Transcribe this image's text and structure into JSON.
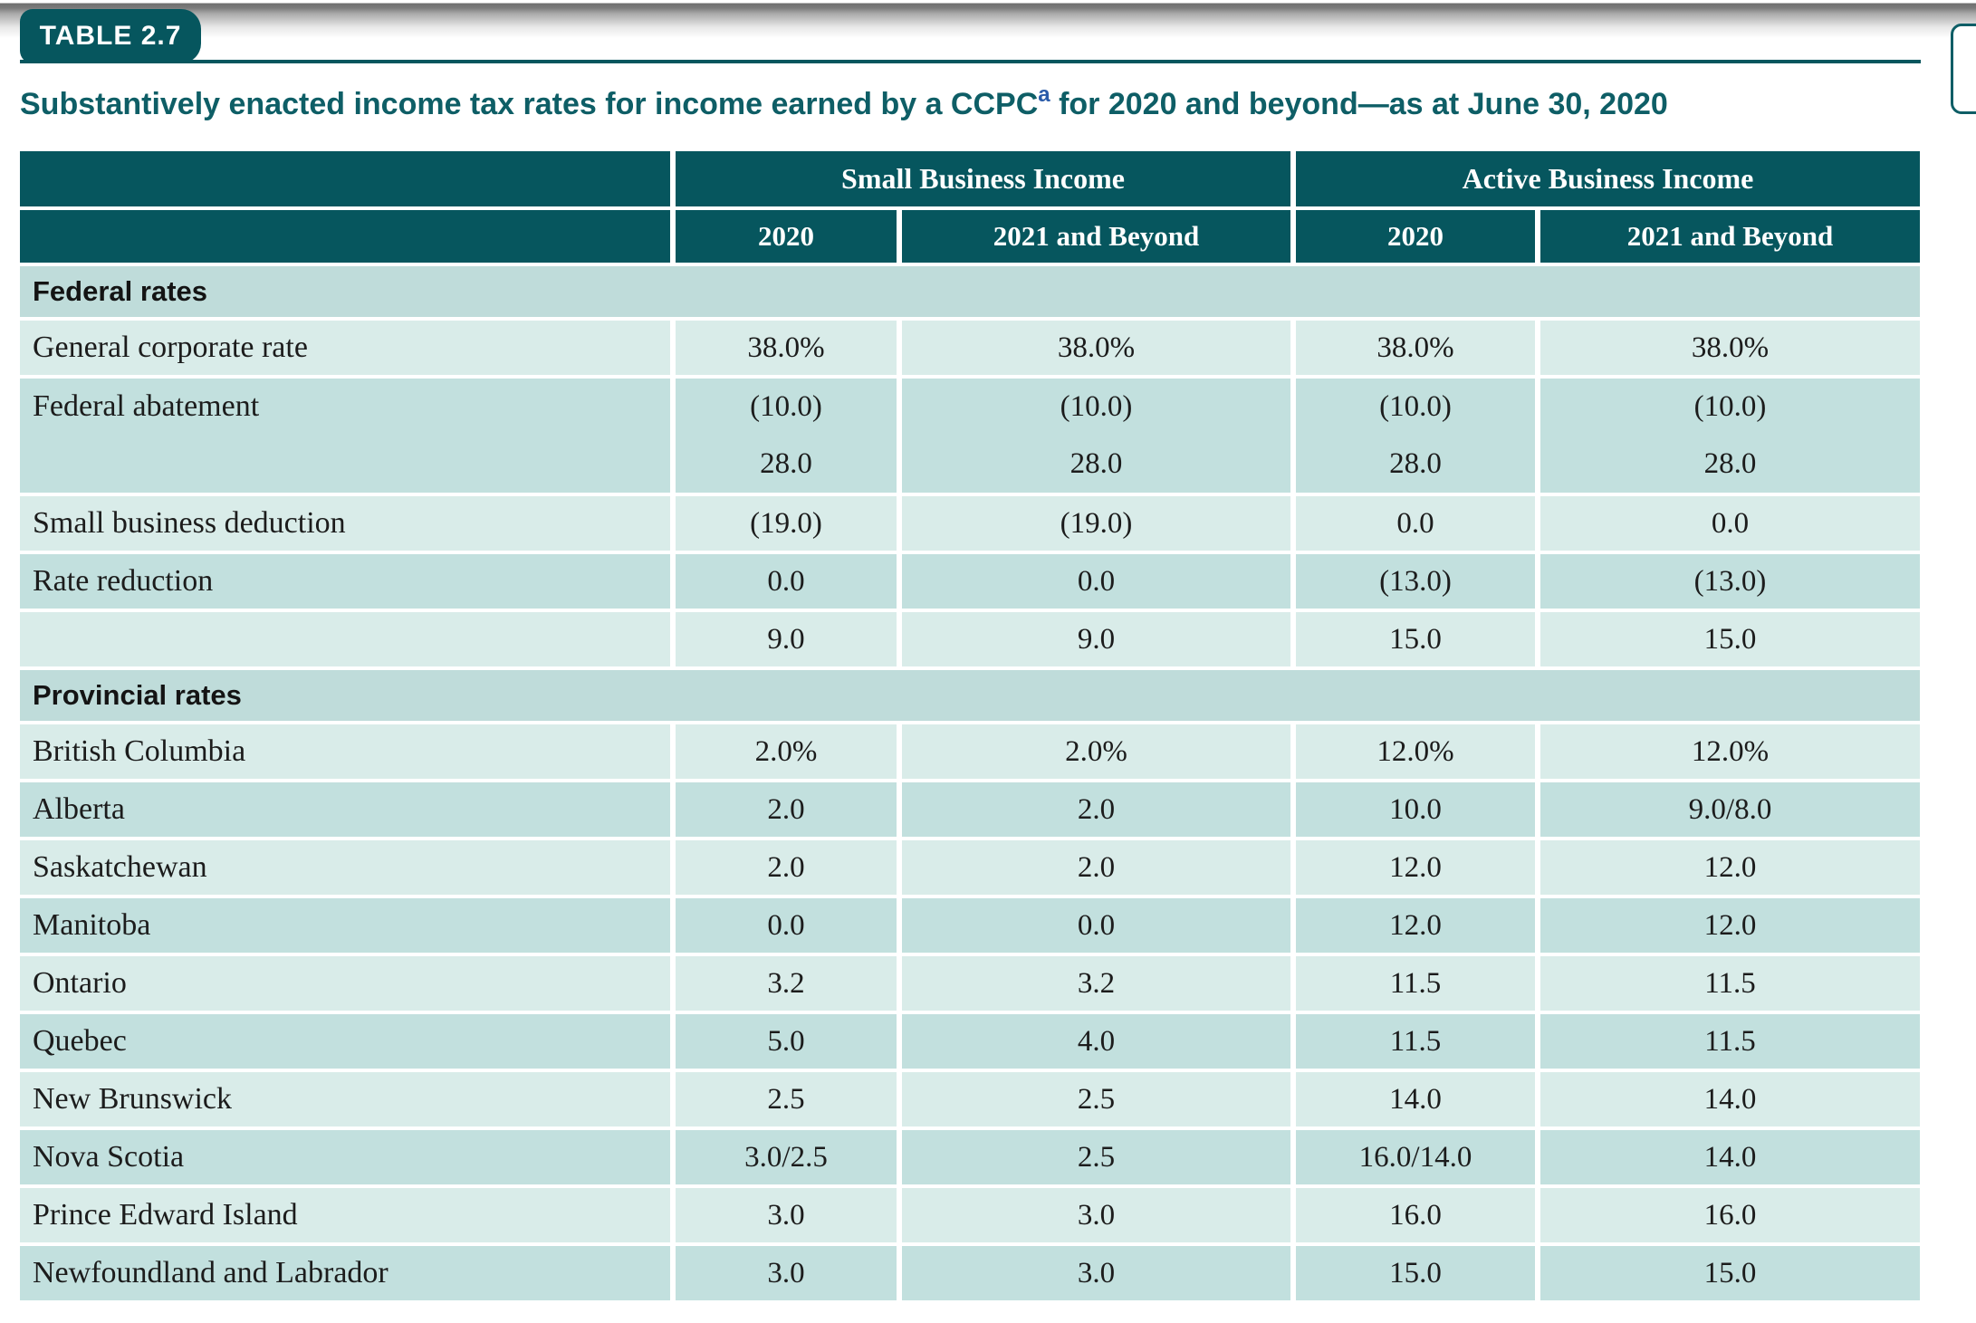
{
  "badge": "TABLE 2.7",
  "title": {
    "part1": "Substantively enacted income tax rates for income earned by a CCPC",
    "footnote_marker": "a",
    "part2": " for 2020 and beyond—as at June 30, 2020"
  },
  "colors": {
    "header_teal": "#06565e",
    "title_teal": "#0e5e66",
    "footnote_blue": "#2a5ba9",
    "section_bg": "#bfdcda",
    "row_light_bg": "#d9ece9",
    "row_dark_bg": "#c2e0de",
    "body_text": "#1c1c1c"
  },
  "table": {
    "group_headers": [
      "Small Business Income",
      "Active Business Income"
    ],
    "col_headers": [
      "2020",
      "2021 and Beyond",
      "2020",
      "2021 and Beyond"
    ],
    "rows": [
      {
        "type": "section",
        "label": "Federal rates"
      },
      {
        "type": "data",
        "shade": "light",
        "label": "General corporate rate",
        "values": [
          "38.0%",
          "38.0%",
          "38.0%",
          "38.0%"
        ]
      },
      {
        "type": "data2",
        "shade": "dark",
        "label": "Federal abatement",
        "top": [
          "(10.0)",
          "(10.0)",
          "(10.0)",
          "(10.0)"
        ],
        "bottom": [
          "28.0",
          "28.0",
          "28.0",
          "28.0"
        ]
      },
      {
        "type": "data",
        "shade": "light",
        "label": "Small business deduction",
        "values": [
          "(19.0)",
          "(19.0)",
          "0.0",
          "0.0"
        ]
      },
      {
        "type": "data",
        "shade": "dark",
        "label": "Rate reduction",
        "values": [
          "0.0",
          "0.0",
          "(13.0)",
          "(13.0)"
        ]
      },
      {
        "type": "data",
        "shade": "light",
        "label": "",
        "values": [
          "9.0",
          "9.0",
          "15.0",
          "15.0"
        ]
      },
      {
        "type": "section",
        "label": "Provincial rates"
      },
      {
        "type": "data",
        "shade": "light",
        "label": "British Columbia",
        "values": [
          "2.0%",
          "2.0%",
          "12.0%",
          "12.0%"
        ]
      },
      {
        "type": "data",
        "shade": "dark",
        "label": "Alberta",
        "values": [
          "2.0",
          "2.0",
          "10.0",
          "9.0/8.0"
        ]
      },
      {
        "type": "data",
        "shade": "light",
        "label": "Saskatchewan",
        "values": [
          "2.0",
          "2.0",
          "12.0",
          "12.0"
        ]
      },
      {
        "type": "data",
        "shade": "dark",
        "label": "Manitoba",
        "values": [
          "0.0",
          "0.0",
          "12.0",
          "12.0"
        ]
      },
      {
        "type": "data",
        "shade": "light",
        "label": "Ontario",
        "values": [
          "3.2",
          "3.2",
          "11.5",
          "11.5"
        ]
      },
      {
        "type": "data",
        "shade": "dark",
        "label": "Quebec",
        "values": [
          "5.0",
          "4.0",
          "11.5",
          "11.5"
        ]
      },
      {
        "type": "data",
        "shade": "light",
        "label": "New Brunswick",
        "values": [
          "2.5",
          "2.5",
          "14.0",
          "14.0"
        ]
      },
      {
        "type": "data",
        "shade": "dark",
        "label": "Nova Scotia",
        "values": [
          "3.0/2.5",
          "2.5",
          "16.0/14.0",
          "14.0"
        ]
      },
      {
        "type": "data",
        "shade": "light",
        "label": "Prince Edward Island",
        "values": [
          "3.0",
          "3.0",
          "16.0",
          "16.0"
        ]
      },
      {
        "type": "data",
        "shade": "dark",
        "label": "Newfoundland and Labrador",
        "values": [
          "3.0",
          "3.0",
          "15.0",
          "15.0"
        ]
      }
    ]
  }
}
